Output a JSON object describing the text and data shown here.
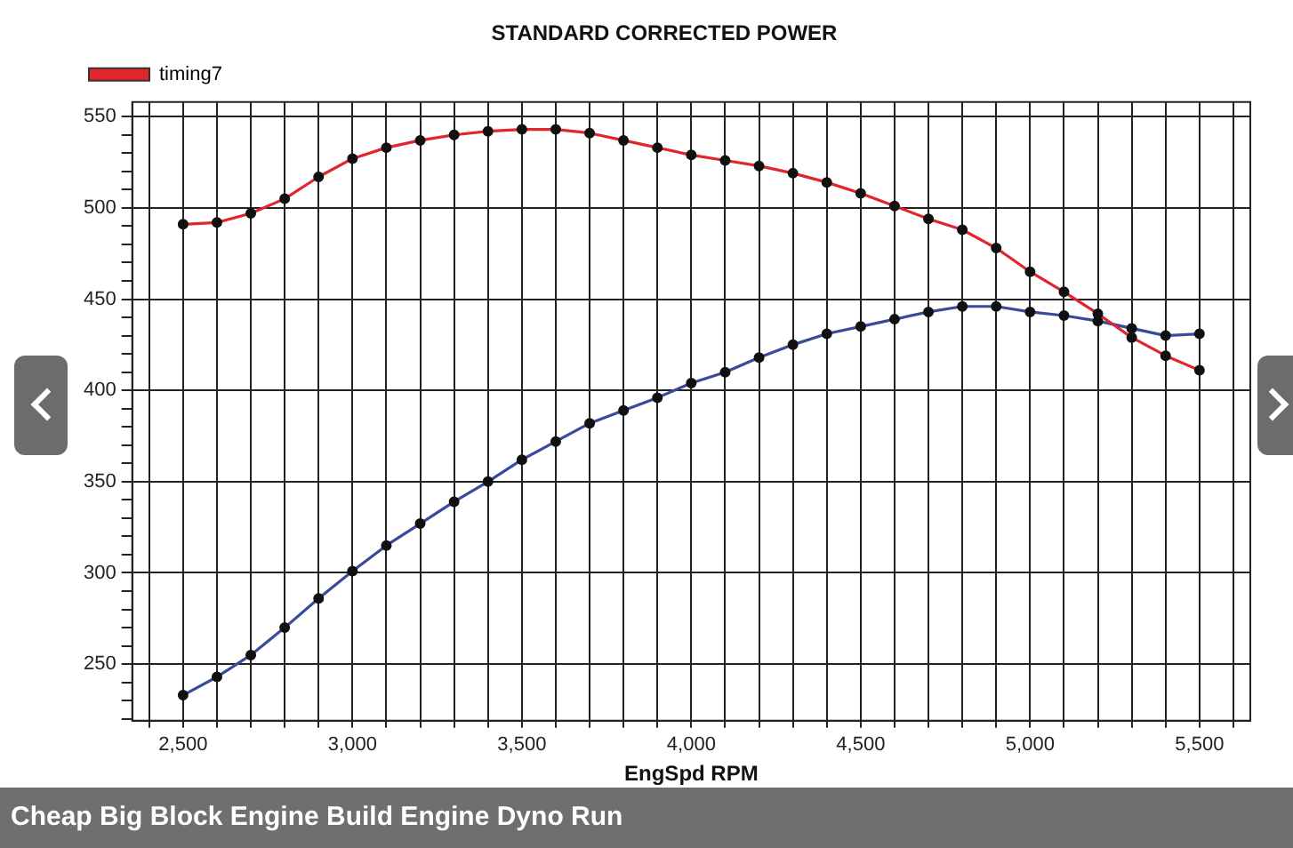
{
  "chart_data": {
    "type": "line",
    "title": "STANDARD CORRECTED POWER",
    "xlabel": "EngSpd RPM",
    "annotations": [
      "Cheap Big Block Engine Build Engine Dyno Run"
    ],
    "x": [
      2500,
      2600,
      2700,
      2800,
      2900,
      3000,
      3100,
      3200,
      3300,
      3400,
      3500,
      3600,
      3700,
      3800,
      3900,
      4000,
      4100,
      4200,
      4300,
      4400,
      4500,
      4600,
      4700,
      4800,
      4900,
      5000,
      5100,
      5200,
      5300,
      5400,
      5500
    ],
    "series": [
      {
        "name": "timing7",
        "color": "#e0262c",
        "values": [
          491,
          492,
          497,
          505,
          517,
          527,
          533,
          537,
          540,
          542,
          543,
          543,
          541,
          537,
          533,
          529,
          526,
          523,
          519,
          514,
          508,
          501,
          494,
          488,
          478,
          465,
          454,
          442,
          429,
          419,
          411
        ]
      },
      {
        "color": "#3a4a9a",
        "values": [
          233,
          243,
          255,
          270,
          286,
          301,
          315,
          327,
          339,
          350,
          362,
          372,
          382,
          389,
          396,
          404,
          410,
          418,
          425,
          431,
          435,
          439,
          443,
          446,
          446,
          443,
          441,
          438,
          434,
          430,
          431
        ]
      }
    ],
    "xlim": [
      2350,
      5650
    ],
    "xticks": [
      {
        "value": 2400,
        "label": null
      },
      {
        "value": 2500,
        "label": "2,500"
      },
      {
        "value": 2600,
        "label": null
      },
      {
        "value": 2700,
        "label": null
      },
      {
        "value": 2800,
        "label": null
      },
      {
        "value": 2900,
        "label": null
      },
      {
        "value": 3000,
        "label": "3,000"
      },
      {
        "value": 3100,
        "label": null
      },
      {
        "value": 3200,
        "label": null
      },
      {
        "value": 3300,
        "label": null
      },
      {
        "value": 3400,
        "label": null
      },
      {
        "value": 3500,
        "label": "3,500"
      },
      {
        "value": 3600,
        "label": null
      },
      {
        "value": 3700,
        "label": null
      },
      {
        "value": 3800,
        "label": null
      },
      {
        "value": 3900,
        "label": null
      },
      {
        "value": 4000,
        "label": "4,000"
      },
      {
        "value": 4100,
        "label": null
      },
      {
        "value": 4200,
        "label": null
      },
      {
        "value": 4300,
        "label": null
      },
      {
        "value": 4400,
        "label": null
      },
      {
        "value": 4500,
        "label": "4,500"
      },
      {
        "value": 4600,
        "label": null
      },
      {
        "value": 4700,
        "label": null
      },
      {
        "value": 4800,
        "label": null
      },
      {
        "value": 4900,
        "label": null
      },
      {
        "value": 5000,
        "label": "5,000"
      },
      {
        "value": 5100,
        "label": null
      },
      {
        "value": 5200,
        "label": null
      },
      {
        "value": 5300,
        "label": null
      },
      {
        "value": 5400,
        "label": null
      },
      {
        "value": 5500,
        "label": "5,500"
      },
      {
        "value": 5600,
        "label": null
      }
    ],
    "ylim": [
      219,
      558
    ],
    "yticks": [
      {
        "value": 220,
        "label": null
      },
      {
        "value": 230,
        "label": null
      },
      {
        "value": 240,
        "label": null
      },
      250,
      {
        "value": 260,
        "label": null
      },
      {
        "value": 270,
        "label": null
      },
      {
        "value": 280,
        "label": null
      },
      {
        "value": 290,
        "label": null
      },
      300,
      {
        "value": 310,
        "label": null
      },
      {
        "value": 320,
        "label": null
      },
      {
        "value": 330,
        "label": null
      },
      {
        "value": 340,
        "label": null
      },
      350,
      {
        "value": 360,
        "label": null
      },
      {
        "value": 370,
        "label": null
      },
      {
        "value": 380,
        "label": null
      },
      {
        "value": 390,
        "label": null
      },
      400,
      {
        "value": 410,
        "label": null
      },
      {
        "value": 420,
        "label": null
      },
      {
        "value": 430,
        "label": null
      },
      {
        "value": 440,
        "label": null
      },
      450,
      {
        "value": 460,
        "label": null
      },
      {
        "value": 470,
        "label": null
      },
      {
        "value": 480,
        "label": null
      },
      {
        "value": 490,
        "label": null
      },
      500,
      {
        "value": 510,
        "label": null
      },
      {
        "value": 520,
        "label": null
      },
      {
        "value": 530,
        "label": null
      },
      {
        "value": 540,
        "label": null
      },
      550
    ],
    "grid": true,
    "legend": "top left",
    "marker": "circle",
    "line_style": "solid"
  }
}
